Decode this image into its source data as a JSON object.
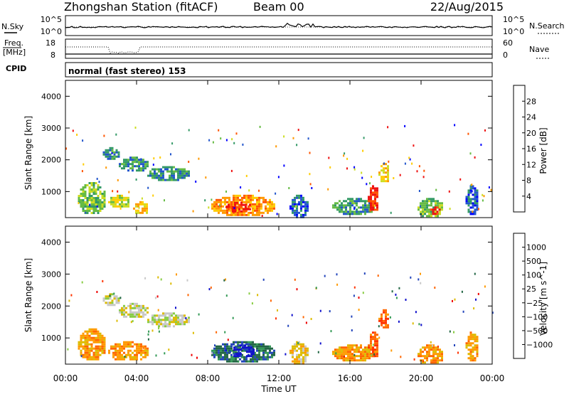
{
  "header": {
    "station": "Zhongshan Station (fitACF)",
    "beam": "Beam 00",
    "date": "22/Aug/2015"
  },
  "top_panels": {
    "nsky_label": "N.Sky",
    "nsearch_label": "N.Search",
    "nsky_ticks": [
      "10^5",
      "10^0"
    ],
    "nsearch_ticks": [
      "10^5",
      "10^0"
    ],
    "freq_label_1": "Freq.",
    "freq_label_2": "[MHz]",
    "freq_ticks": [
      "18",
      "8"
    ],
    "nave_label": "Nave",
    "nave_ticks": [
      "60",
      "0"
    ],
    "cpid_label": "CPID",
    "cpid_text": "normal (fast stereo) 153"
  },
  "axes": {
    "ylabel": "Slant Range [km]",
    "xlabel": "Time UT",
    "yticks": [
      1000,
      2000,
      3000,
      4000
    ],
    "ylim": [
      180,
      4500
    ],
    "xlim": [
      0,
      24
    ],
    "xticks": [
      "00:00",
      "04:00",
      "08:00",
      "12:00",
      "16:00",
      "20:00",
      "00:00"
    ]
  },
  "colorbars": {
    "power": {
      "label": "Power [dB]",
      "colors": [
        "#0000ff",
        "#2255cc",
        "#339966",
        "#66bb44",
        "#ccdd22",
        "#ffcc00",
        "#ff9900",
        "#ff5500",
        "#ee1111"
      ],
      "ticks": [
        "4",
        "8",
        "12",
        "16",
        "20",
        "24",
        "28"
      ]
    },
    "velocity": {
      "label": "Velocity [m s^-1]",
      "colors": [
        "#1111cc",
        "#2244bb",
        "#226644",
        "#339955",
        "#88cc44",
        "#c8c8c8",
        "#ddbb00",
        "#ff9900",
        "#ff6600",
        "#ff3300",
        "#ee0000"
      ],
      "ticks": [
        "1000",
        "500",
        "100",
        "25",
        "−25",
        "−100",
        "−500",
        "−1000"
      ]
    }
  },
  "chart_data": [
    {
      "type": "heatmap",
      "name": "Power",
      "xlabel": "Time UT",
      "ylabel": "Slant Range [km]",
      "x_range_hours": [
        0,
        24
      ],
      "y_range_km": [
        180,
        4500
      ],
      "patches": [
        {
          "t0": 0.7,
          "t1": 2.2,
          "r0": 300,
          "r1": 1300,
          "level": 3
        },
        {
          "t0": 2.4,
          "t1": 3.6,
          "r0": 500,
          "r1": 900,
          "level": 4
        },
        {
          "t0": 3.8,
          "t1": 4.6,
          "r0": 300,
          "r1": 700,
          "level": 5
        },
        {
          "t0": 2.1,
          "t1": 3.0,
          "r0": 2050,
          "r1": 2400,
          "level": 2
        },
        {
          "t0": 3.0,
          "t1": 4.6,
          "r0": 1650,
          "r1": 2100,
          "level": 2
        },
        {
          "t0": 4.6,
          "t1": 6.9,
          "r0": 1380,
          "r1": 1800,
          "level": 2
        },
        {
          "t0": 8.2,
          "t1": 11.7,
          "r0": 260,
          "r1": 900,
          "level": 6
        },
        {
          "t0": 9.0,
          "t1": 10.4,
          "r0": 380,
          "r1": 680,
          "level": 8
        },
        {
          "t0": 12.6,
          "t1": 13.6,
          "r0": 200,
          "r1": 900,
          "level": 1
        },
        {
          "t0": 15.0,
          "t1": 17.4,
          "r0": 300,
          "r1": 800,
          "level": 2
        },
        {
          "t0": 17.0,
          "t1": 17.6,
          "r0": 400,
          "r1": 1200,
          "level": 8
        },
        {
          "t0": 17.6,
          "t1": 18.2,
          "r0": 1300,
          "r1": 1900,
          "level": 5
        },
        {
          "t0": 19.8,
          "t1": 21.2,
          "r0": 200,
          "r1": 800,
          "level": 3
        },
        {
          "t0": 20.5,
          "t1": 21.0,
          "r0": 300,
          "r1": 600,
          "level": 8
        },
        {
          "t0": 22.5,
          "t1": 23.2,
          "r0": 300,
          "r1": 1200,
          "level": 1
        }
      ]
    },
    {
      "type": "heatmap",
      "name": "Velocity",
      "xlabel": "Time UT",
      "ylabel": "Slant Range [km]",
      "x_range_hours": [
        0,
        24
      ],
      "y_range_km": [
        180,
        4500
      ],
      "patches": [
        {
          "t0": 0.7,
          "t1": 2.2,
          "r0": 300,
          "r1": 1300,
          "level": 7
        },
        {
          "t0": 2.4,
          "t1": 4.6,
          "r0": 300,
          "r1": 900,
          "level": 7
        },
        {
          "t0": 2.1,
          "t1": 3.0,
          "r0": 2050,
          "r1": 2400,
          "level": 5
        },
        {
          "t0": 3.0,
          "t1": 4.6,
          "r0": 1650,
          "r1": 2100,
          "level": 5
        },
        {
          "t0": 4.6,
          "t1": 6.9,
          "r0": 1380,
          "r1": 1800,
          "level": 5
        },
        {
          "t0": 8.2,
          "t1": 11.7,
          "r0": 260,
          "r1": 900,
          "level": 2
        },
        {
          "t0": 9.2,
          "t1": 10.6,
          "r0": 400,
          "r1": 800,
          "level": 0
        },
        {
          "t0": 12.6,
          "t1": 13.6,
          "r0": 200,
          "r1": 900,
          "level": 6
        },
        {
          "t0": 15.0,
          "t1": 17.4,
          "r0": 300,
          "r1": 800,
          "level": 7
        },
        {
          "t0": 17.0,
          "t1": 17.6,
          "r0": 400,
          "r1": 1200,
          "level": 8
        },
        {
          "t0": 17.6,
          "t1": 18.2,
          "r0": 1300,
          "r1": 1900,
          "level": 8
        },
        {
          "t0": 19.8,
          "t1": 21.2,
          "r0": 200,
          "r1": 800,
          "level": 7
        },
        {
          "t0": 22.5,
          "t1": 23.2,
          "r0": 300,
          "r1": 1200,
          "level": 7
        }
      ]
    }
  ]
}
